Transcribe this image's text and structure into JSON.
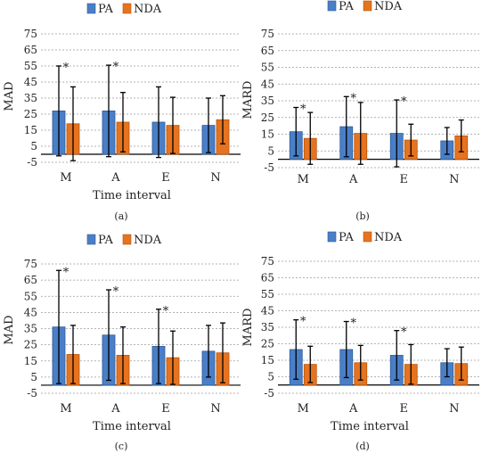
{
  "colors": {
    "PA": "#4a7fc8",
    "NDA": "#e6731f",
    "PA_edge": "#2d5a96",
    "NDA_edge": "#b85510"
  },
  "chart_data": [
    {
      "type": "bar",
      "caption": "(a)",
      "xlabel": "Time interval",
      "ylabel": "MAD",
      "categories": [
        "M",
        "A",
        "E",
        "N"
      ],
      "yticks": [
        -5,
        5,
        15,
        25,
        35,
        45,
        55,
        65,
        75
      ],
      "ylim": [
        -5,
        75
      ],
      "legend": [
        "PA",
        "NDA"
      ],
      "legend_position": "top",
      "series": [
        {
          "name": "PA",
          "values": [
            27,
            27,
            20,
            18
          ],
          "err": [
            28,
            28.5,
            22,
            17
          ]
        },
        {
          "name": "NDA",
          "values": [
            19,
            20,
            18,
            21.5
          ],
          "err": [
            23,
            18.5,
            17.5,
            15
          ]
        }
      ],
      "significance": [
        "*",
        "*",
        "",
        ""
      ]
    },
    {
      "type": "bar",
      "caption": "(b)",
      "xlabel": "",
      "ylabel": "MARD",
      "categories": [
        "M",
        "A",
        "E",
        "N"
      ],
      "yticks": [
        -5,
        5,
        15,
        25,
        35,
        45,
        55,
        65,
        75
      ],
      "ylim": [
        -5,
        75
      ],
      "legend": [
        "PA",
        "NDA"
      ],
      "legend_position": "top",
      "series": [
        {
          "name": "PA",
          "values": [
            16.5,
            19.5,
            15.5,
            11
          ],
          "err": [
            14.5,
            18,
            20,
            8
          ]
        },
        {
          "name": "NDA",
          "values": [
            12.5,
            15.5,
            11.5,
            14
          ],
          "err": [
            15.5,
            18.5,
            9.5,
            9.5
          ]
        }
      ],
      "significance": [
        "*",
        "*",
        "*",
        ""
      ]
    },
    {
      "type": "bar",
      "caption": "(c)",
      "xlabel": "Time interval",
      "ylabel": "MAD",
      "categories": [
        "M",
        "A",
        "E",
        "N"
      ],
      "yticks": [
        -5,
        5,
        15,
        25,
        35,
        45,
        55,
        65,
        75
      ],
      "ylim": [
        -5,
        75
      ],
      "legend": [
        "PA",
        "NDA"
      ],
      "legend_position": "top",
      "series": [
        {
          "name": "PA",
          "values": [
            36,
            31,
            24,
            21
          ],
          "err": [
            35,
            28,
            23,
            16
          ]
        },
        {
          "name": "NDA",
          "values": [
            19,
            18.5,
            17,
            20
          ],
          "err": [
            18,
            17.5,
            16.5,
            18.5
          ]
        }
      ],
      "significance": [
        "*",
        "*",
        "*",
        ""
      ]
    },
    {
      "type": "bar",
      "caption": "(d)",
      "xlabel": "Time interval",
      "ylabel": "MARD",
      "categories": [
        "M",
        "A",
        "E",
        "N"
      ],
      "yticks": [
        -5,
        5,
        15,
        25,
        35,
        45,
        55,
        65,
        75
      ],
      "ylim": [
        -5,
        75
      ],
      "legend": [
        "PA",
        "NDA"
      ],
      "legend_position": "top",
      "series": [
        {
          "name": "PA",
          "values": [
            21.5,
            21.5,
            18,
            13.5
          ],
          "err": [
            18,
            17,
            15,
            8.5
          ]
        },
        {
          "name": "NDA",
          "values": [
            12.5,
            13.5,
            12.5,
            13
          ],
          "err": [
            11,
            10.5,
            12,
            10
          ]
        }
      ],
      "significance": [
        "*",
        "*",
        "*",
        ""
      ]
    }
  ]
}
